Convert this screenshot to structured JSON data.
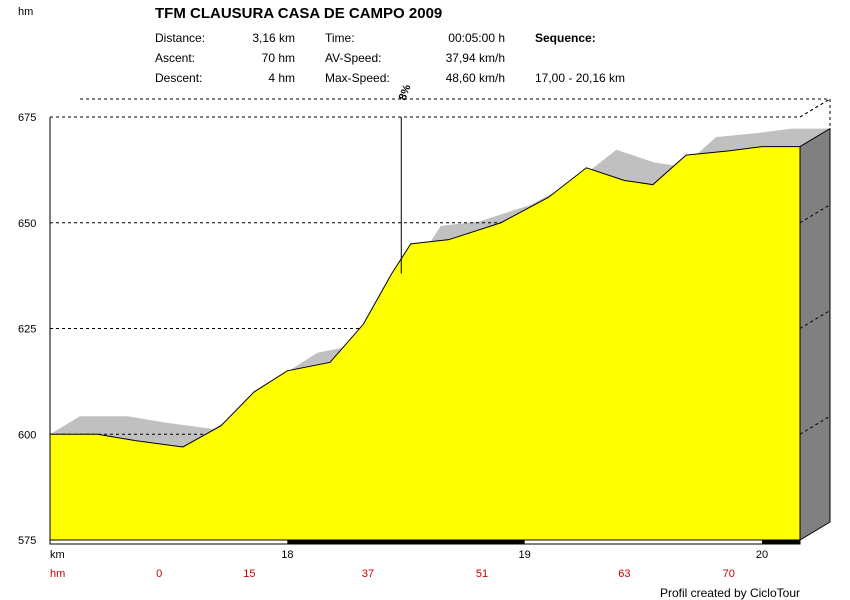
{
  "header": {
    "unit_label": "hm",
    "title": "TFM CLAUSURA CASA DE CAMPO 2009"
  },
  "stats": {
    "distance_label": "Distance:",
    "distance_value": "3,16 km",
    "ascent_label": "Ascent:",
    "ascent_value": "70 hm",
    "descent_label": "Descent:",
    "descent_value": "4 hm",
    "time_label": "Time:",
    "time_value": "00:05:00 h",
    "avspeed_label": "AV-Speed:",
    "avspeed_value": "37,94 km/h",
    "maxspeed_label": "Max-Speed:",
    "maxspeed_value": "48,60 km/h",
    "sequence_label": "Sequence:",
    "sequence_value": "17,00 - 20,16 km"
  },
  "footer": {
    "km_label": "km",
    "hm_label": "hm",
    "credit": "Profil created by CicloTour"
  },
  "colors": {
    "fill": "#ffff00",
    "shadow": "#c0c0c0",
    "side": "#808080",
    "hm_labels": "#cc0000"
  },
  "chart_data": {
    "type": "area",
    "title": "TFM CLAUSURA CASA DE CAMPO 2009",
    "xlabel": "km",
    "ylabel": "hm",
    "xlim": [
      17.0,
      20.16
    ],
    "ylim": [
      575,
      675
    ],
    "y_ticks": [
      575,
      600,
      625,
      650,
      675
    ],
    "x_ticks": [
      18,
      19,
      20
    ],
    "grid": true,
    "series": [
      {
        "x": [
          17.0,
          17.2,
          17.36,
          17.56,
          17.72,
          17.86,
          18.0,
          18.18,
          18.32,
          18.44,
          18.52,
          18.68,
          18.9,
          19.1,
          19.26,
          19.42,
          19.54,
          19.68,
          19.86,
          20.0,
          20.16
        ],
        "values": [
          600,
          600,
          598.5,
          597,
          602,
          610,
          615,
          617,
          626,
          638,
          645,
          646,
          650,
          656,
          663,
          660,
          659,
          666,
          667,
          668,
          668
        ]
      }
    ],
    "annotations": [
      {
        "x": 18.48,
        "y": 638,
        "text": "8%"
      }
    ],
    "distance_labels": [
      "18",
      "19",
      "20"
    ],
    "altitude_labels": [
      "0",
      "15",
      "37",
      "51",
      "63",
      "70"
    ]
  }
}
